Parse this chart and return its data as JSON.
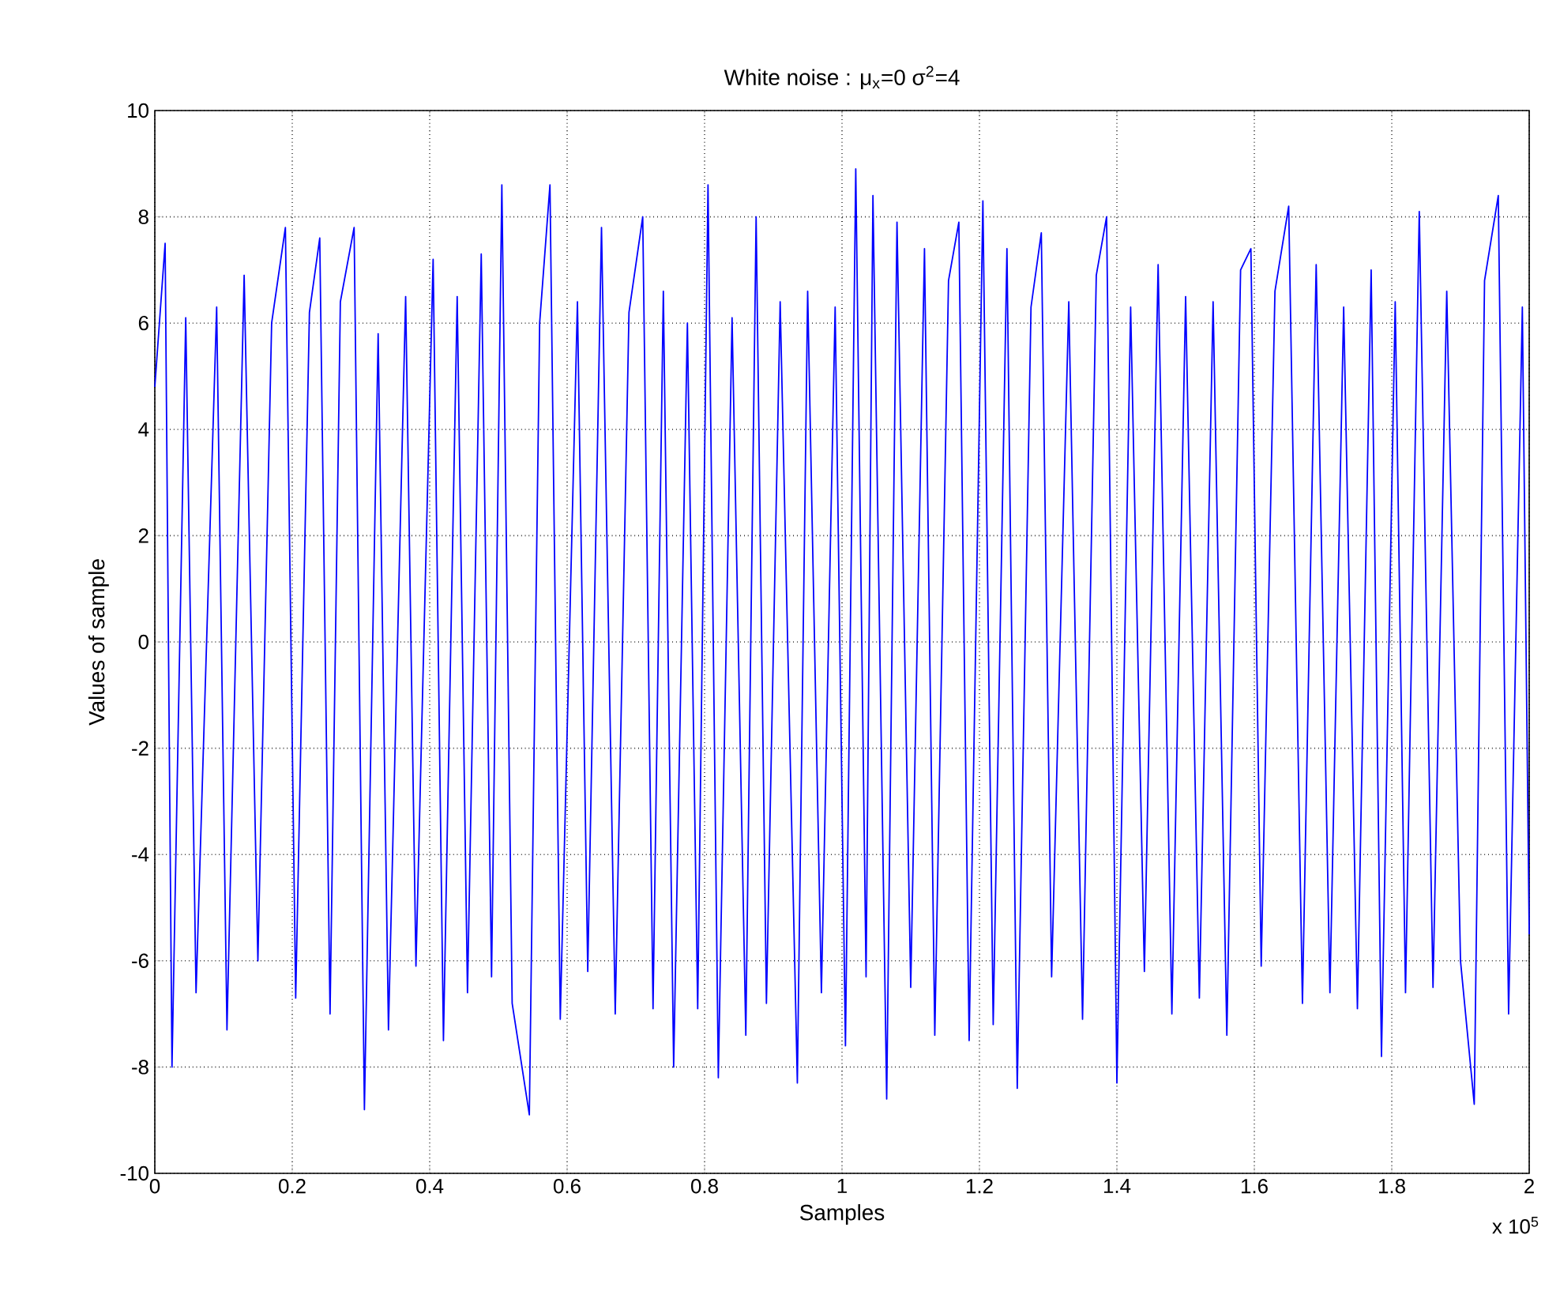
{
  "chart_data": {
    "type": "line",
    "title": "White noise : μ$_{x}$=0 σ$^{2}$=4",
    "xlabel": "Samples",
    "ylabel": "Values of sample",
    "annotations": [
      "x 10$^{5}$"
    ],
    "x": [
      0,
      0.015,
      0.025,
      0.045,
      0.06,
      0.09,
      0.105,
      0.13,
      0.15,
      0.17,
      0.19,
      0.205,
      0.225,
      0.24,
      0.255,
      0.27,
      0.29,
      0.305,
      0.325,
      0.34,
      0.365,
      0.38,
      0.405,
      0.42,
      0.44,
      0.455,
      0.475,
      0.49,
      0.505,
      0.52,
      0.545,
      0.56,
      0.575,
      0.59,
      0.615,
      0.63,
      0.65,
      0.67,
      0.69,
      0.71,
      0.725,
      0.74,
      0.755,
      0.775,
      0.79,
      0.805,
      0.82,
      0.84,
      0.86,
      0.875,
      0.89,
      0.91,
      0.935,
      0.95,
      0.97,
      0.99,
      1.005,
      1.02,
      1.035,
      1.045,
      1.065,
      1.08,
      1.1,
      1.12,
      1.135,
      1.155,
      1.17,
      1.185,
      1.205,
      1.22,
      1.24,
      1.255,
      1.275,
      1.29,
      1.305,
      1.33,
      1.35,
      1.37,
      1.385,
      1.4,
      1.42,
      1.44,
      1.46,
      1.48,
      1.5,
      1.52,
      1.54,
      1.56,
      1.58,
      1.595,
      1.61,
      1.63,
      1.65,
      1.67,
      1.69,
      1.71,
      1.73,
      1.75,
      1.77,
      1.785,
      1.805,
      1.82,
      1.84,
      1.86,
      1.88,
      1.9,
      1.92,
      1.935,
      1.955,
      1.97,
      1.99,
      2
    ],
    "series": [
      {
        "color": "#0000ff",
        "values": [
          4.8,
          7.5,
          -8.0,
          6.1,
          -6.6,
          6.3,
          -7.3,
          6.9,
          -6.0,
          6.0,
          7.8,
          -6.7,
          6.2,
          7.6,
          -7.0,
          6.4,
          7.8,
          -8.8,
          5.8,
          -7.3,
          6.5,
          -6.1,
          7.2,
          -7.5,
          6.5,
          -6.6,
          7.3,
          -6.3,
          8.6,
          -6.8,
          -8.9,
          6.0,
          8.6,
          -7.1,
          6.4,
          -6.2,
          7.8,
          -7.0,
          6.2,
          8.0,
          -6.9,
          6.6,
          -8.0,
          6.0,
          -6.9,
          8.6,
          -8.2,
          6.1,
          -7.4,
          8.0,
          -6.8,
          6.4,
          -8.3,
          6.6,
          -6.6,
          6.3,
          -7.6,
          8.9,
          -6.3,
          8.4,
          -8.6,
          7.9,
          -6.5,
          7.4,
          -7.4,
          6.8,
          7.9,
          -7.5,
          8.3,
          -7.2,
          7.4,
          -8.4,
          6.3,
          7.7,
          -6.3,
          6.4,
          -7.1,
          6.9,
          8.0,
          -8.3,
          6.3,
          -6.2,
          7.1,
          -7.0,
          6.5,
          -6.7,
          6.4,
          -7.4,
          7.0,
          7.4,
          -6.1,
          6.6,
          8.2,
          -6.8,
          7.1,
          -6.6,
          6.3,
          -6.9,
          7.0,
          -7.8,
          6.4,
          -6.6,
          8.1,
          -6.5,
          6.6,
          -6.0,
          -8.7,
          6.8,
          8.4,
          -7.0,
          6.3,
          -5.5
        ]
      }
    ],
    "xlim": [
      0,
      2
    ],
    "ylim": [
      -10,
      10
    ],
    "xticks": [
      0,
      0.2,
      0.4,
      0.6,
      0.8,
      1,
      1.2,
      1.4,
      1.6,
      1.8,
      2
    ],
    "yticks": [
      -10,
      -8,
      -6,
      -4,
      -2,
      0,
      2,
      4,
      6,
      8,
      10
    ],
    "grid": true,
    "line_style": "solid"
  }
}
